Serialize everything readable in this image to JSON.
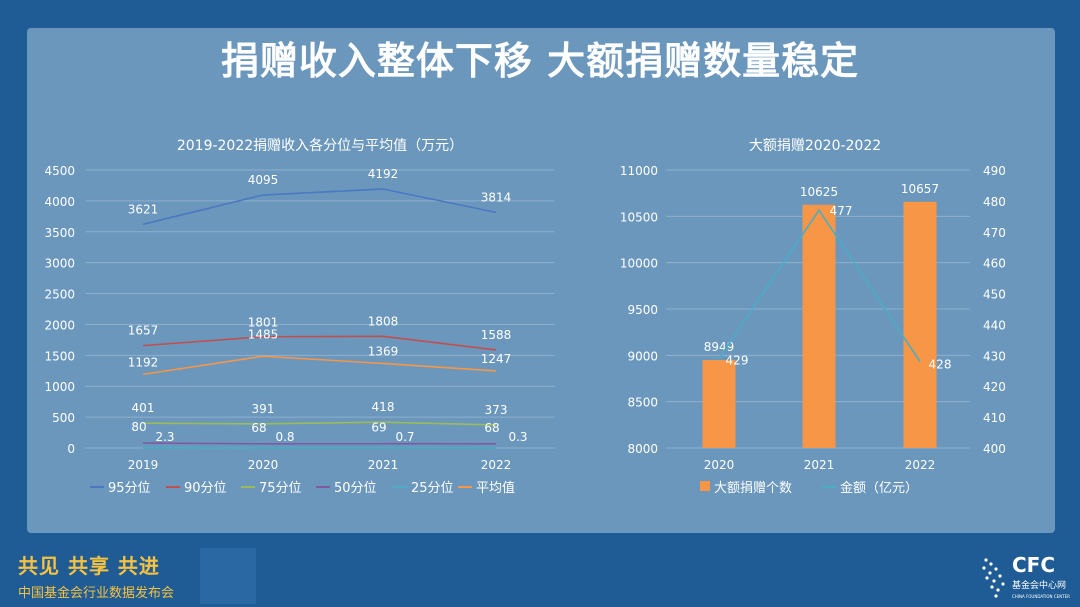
{
  "header": {
    "title": "捐赠收入整体下移  大额捐赠数量稳定"
  },
  "footer": {
    "slogan": "共见 共享 共进",
    "subtitle": "中国基金会行业数据发布会",
    "logo_text": "CFC",
    "logo_sub": "基金会中心网",
    "logo_en": "CHINA FOUNDATION CENTER"
  },
  "chart_data": [
    {
      "type": "line",
      "title": "2019-2022捐赠收入各分位与平均值（万元）",
      "categories": [
        "2019",
        "2020",
        "2021",
        "2022"
      ],
      "ylim": [
        0,
        4500
      ],
      "yticks": [
        0,
        500,
        1000,
        1500,
        2000,
        2500,
        3000,
        3500,
        4000,
        4500
      ],
      "grid": true,
      "legend_position": "bottom",
      "series": [
        {
          "name": "95分位",
          "values": [
            3621,
            4095,
            4192,
            3814
          ],
          "color": "#4a78c2"
        },
        {
          "name": "90分位",
          "values": [
            1657,
            1801,
            1808,
            1588
          ],
          "color": "#c0504d"
        },
        {
          "name": "75分位",
          "values": [
            401,
            391,
            418,
            373
          ],
          "color": "#9bbb59"
        },
        {
          "name": "50分位",
          "values": [
            80,
            68,
            69,
            68
          ],
          "color": "#7e5aa2"
        },
        {
          "name": "25分位",
          "values": [
            2.3,
            0.8,
            0.7,
            0.3
          ],
          "color": "#4bacc6"
        },
        {
          "name": "平均值",
          "values": [
            1192,
            1485,
            1369,
            1247
          ],
          "color": "#f79646"
        }
      ]
    },
    {
      "type": "bar",
      "title": "大额捐赠2020-2022",
      "categories": [
        "2020",
        "2021",
        "2022"
      ],
      "ylim": [
        8000,
        11000
      ],
      "yticks": [
        8000,
        8500,
        9000,
        9500,
        10000,
        10500,
        11000
      ],
      "y2lim": [
        400,
        490
      ],
      "y2ticks": [
        400,
        410,
        420,
        430,
        440,
        450,
        460,
        470,
        480,
        490
      ],
      "grid": true,
      "legend_position": "bottom",
      "series": [
        {
          "name": "大额捐赠个数",
          "type": "bar",
          "axis": "left",
          "values": [
            8949,
            10625,
            10657
          ],
          "color": "#f79646"
        },
        {
          "name": "金额（亿元）",
          "type": "line",
          "axis": "right",
          "values": [
            429,
            477,
            428
          ],
          "color": "#4bacc6"
        }
      ]
    }
  ]
}
